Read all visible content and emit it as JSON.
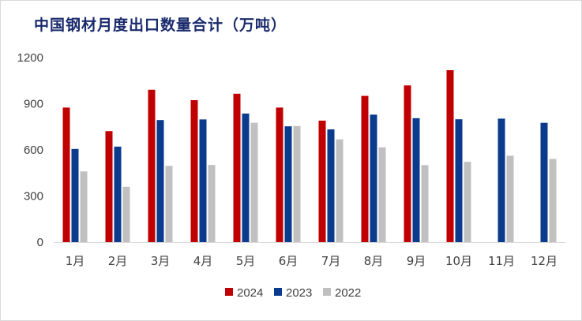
{
  "chart_data": {
    "type": "bar",
    "title": "中国钢材月度出口数量合计（万吨）",
    "categories": [
      "1月",
      "2月",
      "3月",
      "4月",
      "5月",
      "6月",
      "7月",
      "8月",
      "9月",
      "10月",
      "11月",
      "12月"
    ],
    "series": [
      {
        "name": "2024",
        "color": "#c00000",
        "values": [
          875,
          722,
          991,
          923,
          965,
          875,
          790,
          951,
          1019,
          1118,
          null,
          null
        ]
      },
      {
        "name": "2023",
        "color": "#0a3b8c",
        "values": [
          606,
          621,
          794,
          798,
          836,
          753,
          733,
          829,
          806,
          799,
          803,
          776
        ]
      },
      {
        "name": "2022",
        "color": "#c0c0c0",
        "values": [
          460,
          360,
          496,
          502,
          776,
          755,
          668,
          616,
          501,
          522,
          562,
          541
        ]
      }
    ],
    "yticks": [
      0,
      300,
      600,
      900,
      1200
    ],
    "ylim": [
      0,
      1200
    ],
    "grid": false,
    "legend": "bottom-center"
  }
}
